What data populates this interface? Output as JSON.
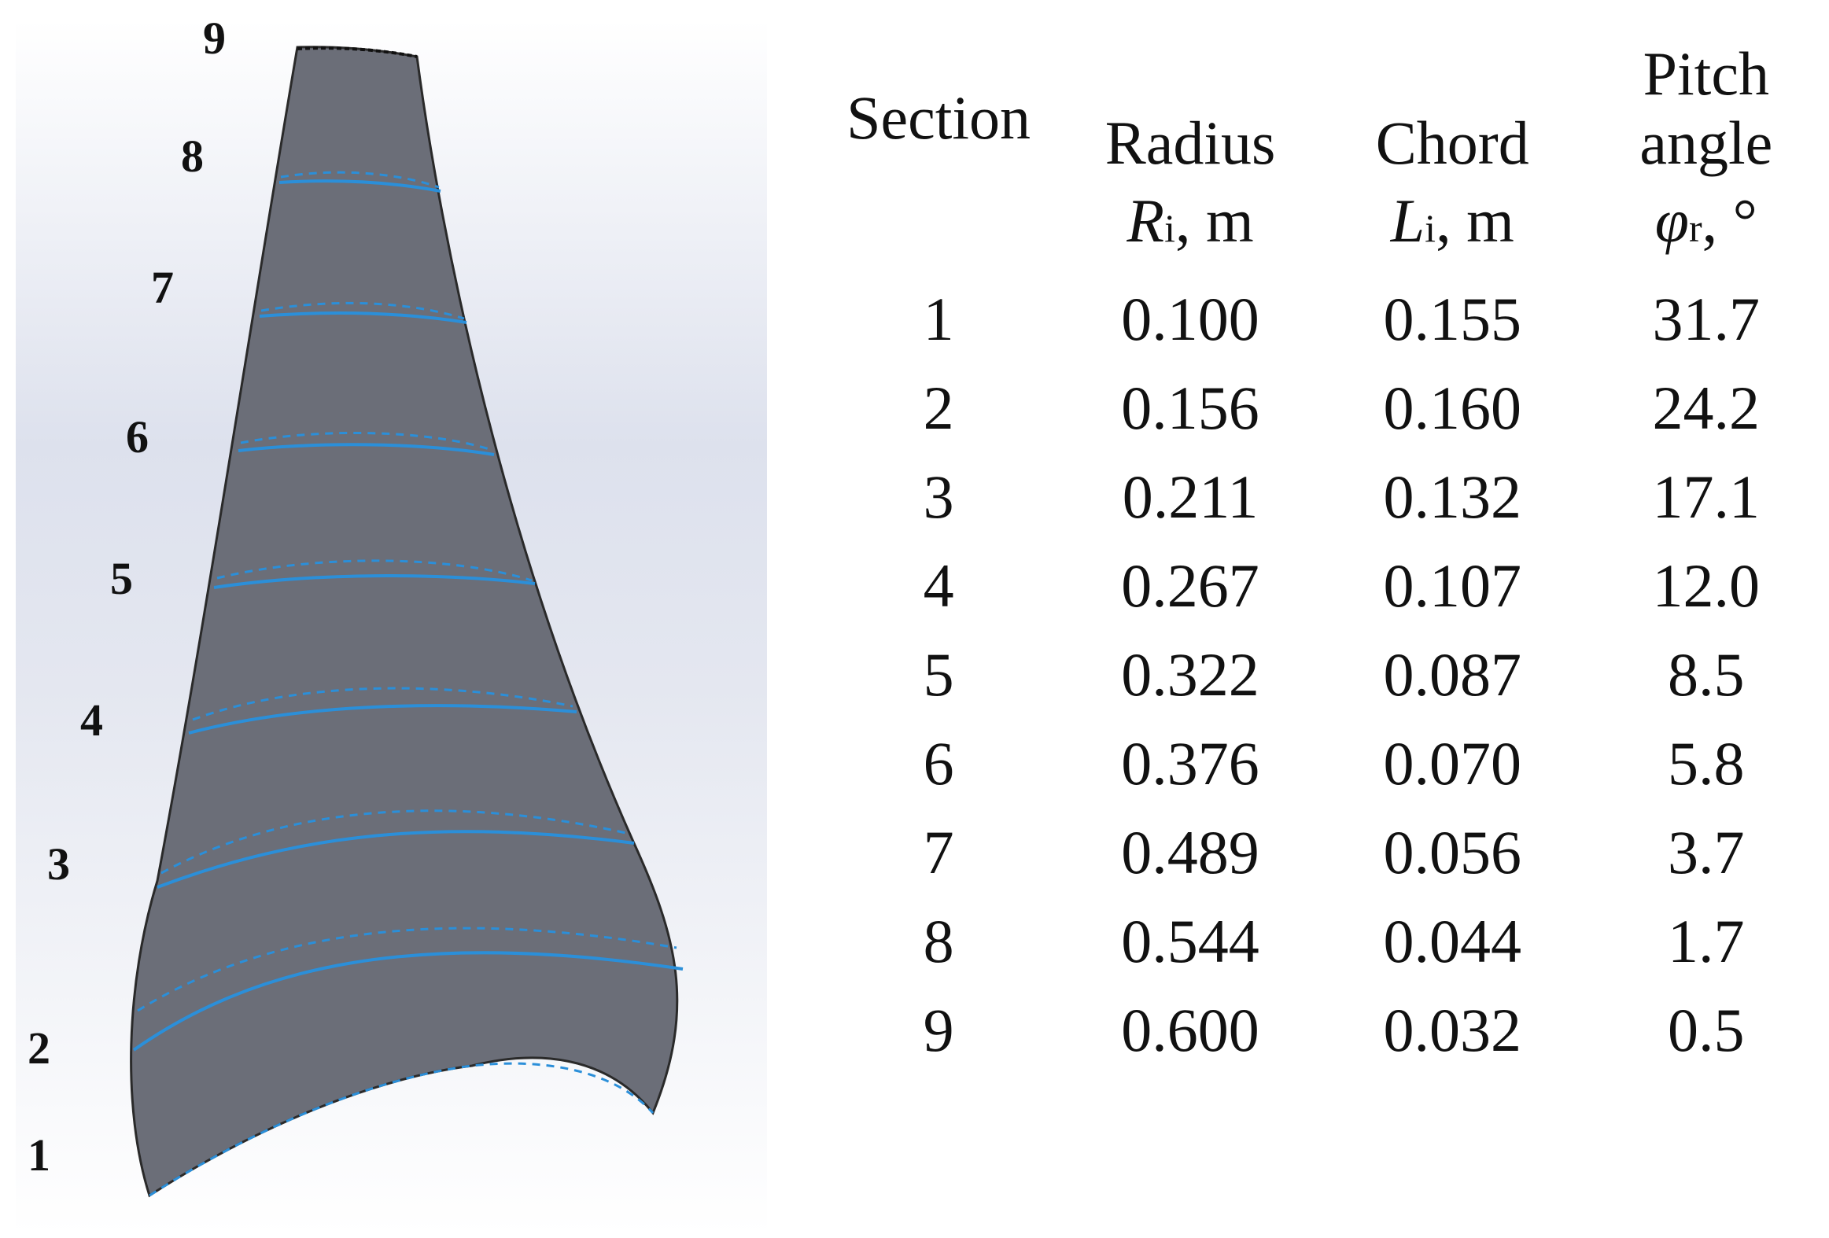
{
  "blade": {
    "section_labels": [
      "1",
      "2",
      "3",
      "4",
      "5",
      "6",
      "7",
      "8",
      "9"
    ],
    "colors": {
      "blade_surface": "#6b6e78",
      "section_line": "#2b8fd9",
      "background_top": "#ffffff",
      "background_band": "#dfe3ee"
    }
  },
  "table": {
    "headers": {
      "section": "Section",
      "radius": "Radius",
      "chord": "Chord",
      "pitch_line1": "Pitch",
      "pitch_line2": "angle"
    },
    "units": {
      "radius_symbol": "R",
      "radius_sub": "i",
      "radius_unit": ", m",
      "chord_symbol": "L",
      "chord_sub": "i",
      "chord_unit": ", m",
      "pitch_symbol": "φ",
      "pitch_sub": "r",
      "pitch_unit": ", °"
    },
    "rows": [
      {
        "section": "1",
        "radius": "0.100",
        "chord": "0.155",
        "pitch": "31.7"
      },
      {
        "section": "2",
        "radius": "0.156",
        "chord": "0.160",
        "pitch": "24.2"
      },
      {
        "section": "3",
        "radius": "0.211",
        "chord": "0.132",
        "pitch": "17.1"
      },
      {
        "section": "4",
        "radius": "0.267",
        "chord": "0.107",
        "pitch": "12.0"
      },
      {
        "section": "5",
        "radius": "0.322",
        "chord": "0.087",
        "pitch": "8.5"
      },
      {
        "section": "6",
        "radius": "0.376",
        "chord": "0.070",
        "pitch": "5.8"
      },
      {
        "section": "7",
        "radius": "0.489",
        "chord": "0.056",
        "pitch": "3.7"
      },
      {
        "section": "8",
        "radius": "0.544",
        "chord": "0.044",
        "pitch": "1.7"
      },
      {
        "section": "9",
        "radius": "0.600",
        "chord": "0.032",
        "pitch": "0.5"
      }
    ]
  }
}
